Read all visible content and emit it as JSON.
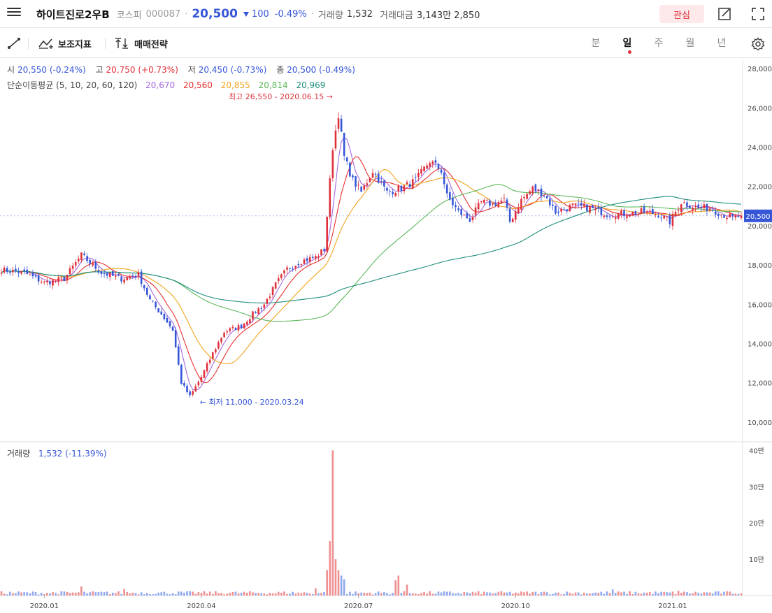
{
  "header": {
    "stock_name": "하이트진로2우B",
    "market": "코스피",
    "code": "000087",
    "price": "20,500",
    "change": "100",
    "change_pct": "-0.49%",
    "volume_label": "거래량",
    "volume_value": "1,532",
    "amount_label": "거래대금",
    "amount_value": "3,143만 2,850",
    "watch_label": "관심"
  },
  "toolbar": {
    "indicator_label": "보조지표",
    "strategy_label": "매매전략",
    "periods": [
      "분",
      "일",
      "주",
      "월",
      "년"
    ],
    "active_period": "일"
  },
  "info": {
    "open_label": "시",
    "open": "20,550 (-0.24%)",
    "high_label": "고",
    "high": "20,750 (+0.73%)",
    "low_label": "저",
    "low": "20,450 (-0.73%)",
    "close_label": "종",
    "close": "20,500 (-0.49%)",
    "ma_label": "단순이동평균 (5, 10, 20, 60, 120)",
    "ma5": "20,670",
    "ma10": "20,560",
    "ma20": "20,855",
    "ma60": "20,814",
    "ma120": "20,969"
  },
  "volume_info": {
    "label": "거래량",
    "value": "1,532 (-11.39%)"
  },
  "colors": {
    "up": "#e0303b",
    "down": "#3656d8",
    "ma5": "#a569e0",
    "ma10": "#e8302f",
    "ma20": "#f0a420",
    "ma60": "#5cb85c",
    "ma120": "#1e8f7c"
  },
  "chart_data": {
    "type": "candlestick",
    "price_axis": {
      "min": 9000,
      "max": 28500,
      "ticks": [
        "28,000",
        "26,000",
        "24,000",
        "22,000",
        "20,000",
        "18,000",
        "16,000",
        "14,000",
        "12,000",
        "10,000"
      ],
      "tick_values": [
        28000,
        26000,
        24000,
        22000,
        20000,
        18000,
        16000,
        14000,
        12000,
        10000
      ]
    },
    "volume_axis": {
      "min": 0,
      "max": 420000,
      "ticks": [
        "40만",
        "30만",
        "20만",
        "10만"
      ],
      "tick_values": [
        400000,
        300000,
        200000,
        100000
      ]
    },
    "x_labels": [
      "2020.01",
      "2020.04",
      "2020.07",
      "2020.10",
      "2021.01"
    ],
    "x_label_idx": [
      15,
      70,
      125,
      180,
      235
    ],
    "last_price_label": "20,500",
    "last_price": 20500,
    "annotations": [
      {
        "text": "최고 26,550 - 2020.06.15 →",
        "idx": 117,
        "value": 26550
      },
      {
        "text": "← 최저 11,000 - 2020.03.24",
        "idx": 68,
        "value": 11000
      }
    ],
    "close_anchors": [
      [
        0,
        17750
      ],
      [
        8,
        17600
      ],
      [
        15,
        17100
      ],
      [
        22,
        17300
      ],
      [
        28,
        18500
      ],
      [
        35,
        17600
      ],
      [
        42,
        17300
      ],
      [
        48,
        17500
      ],
      [
        52,
        16200
      ],
      [
        56,
        15500
      ],
      [
        60,
        14700
      ],
      [
        63,
        12000
      ],
      [
        66,
        11300
      ],
      [
        68,
        11800
      ],
      [
        70,
        12300
      ],
      [
        74,
        13500
      ],
      [
        78,
        14600
      ],
      [
        84,
        14900
      ],
      [
        88,
        15500
      ],
      [
        92,
        16000
      ],
      [
        96,
        17000
      ],
      [
        100,
        17800
      ],
      [
        105,
        18200
      ],
      [
        110,
        18400
      ],
      [
        113,
        18800
      ],
      [
        114,
        20500
      ],
      [
        116,
        24000
      ],
      [
        118,
        25700
      ],
      [
        120,
        23500
      ],
      [
        123,
        22300
      ],
      [
        126,
        21700
      ],
      [
        130,
        22800
      ],
      [
        135,
        21700
      ],
      [
        140,
        21900
      ],
      [
        145,
        22300
      ],
      [
        150,
        23300
      ],
      [
        154,
        22800
      ],
      [
        156,
        21500
      ],
      [
        160,
        20700
      ],
      [
        164,
        20300
      ],
      [
        168,
        21200
      ],
      [
        172,
        21100
      ],
      [
        176,
        21300
      ],
      [
        178,
        20200
      ],
      [
        182,
        21300
      ],
      [
        186,
        21900
      ],
      [
        190,
        21600
      ],
      [
        194,
        20700
      ],
      [
        200,
        21000
      ],
      [
        206,
        20900
      ],
      [
        212,
        20600
      ],
      [
        218,
        20600
      ],
      [
        224,
        20700
      ],
      [
        230,
        20600
      ],
      [
        234,
        20200
      ],
      [
        238,
        21200
      ],
      [
        244,
        20900
      ],
      [
        248,
        20900
      ],
      [
        252,
        20600
      ],
      [
        256,
        20400
      ],
      [
        259,
        20500
      ]
    ],
    "volume_spikes": [
      [
        114,
        70000
      ],
      [
        115,
        150000
      ],
      [
        116,
        400000
      ],
      [
        117,
        100000
      ],
      [
        118,
        70000
      ],
      [
        119,
        55000
      ],
      [
        120,
        45000
      ],
      [
        138,
        42000
      ],
      [
        139,
        55000
      ],
      [
        142,
        30000
      ],
      [
        28,
        25000
      ],
      [
        43,
        18000
      ],
      [
        110,
        20000
      ],
      [
        214,
        17000
      ],
      [
        237,
        13000
      ]
    ]
  }
}
